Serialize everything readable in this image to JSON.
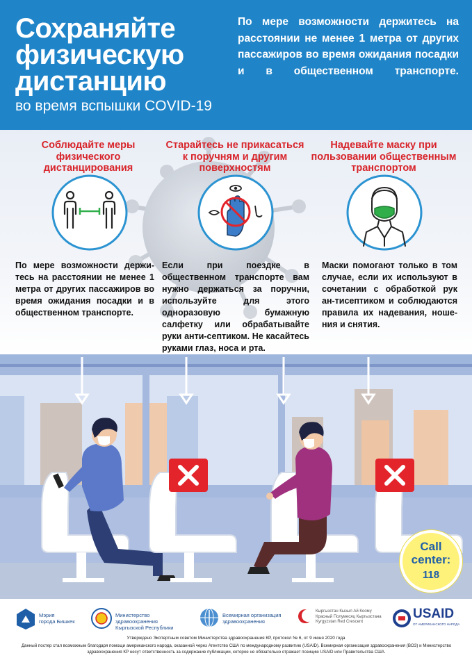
{
  "header": {
    "title_lines": [
      "Сохраняйте",
      "физическую",
      "дистанцию"
    ],
    "subtitle": "во время вспышки COVID-19",
    "intro": "По мере возможности держитесь на расстоянии не менее 1 метра от других пассажиров во время ожидания посадки и в общественном транспорте."
  },
  "columns": [
    {
      "title": "Соблюдайте меры физического дистанцирования",
      "icon": "distancing-people-icon",
      "text": "По мере возможности держи-тесь на расстоянии не менее 1 метра от других пассажиров во время ожидания посадки и в общественном транспорте."
    },
    {
      "title": "Старайтесь не прикасаться к поручням и другим поверхностям",
      "icon": "no-touch-face-icon",
      "text": "Если при поездке в общественном транспорте вам нужно держаться за поручни, используйте для этого одноразовую бумажную салфетку или обрабатывайте руки анти-септиком. Не касайтесь руками глаз, носа и рта."
    },
    {
      "title": "Надевайте маску при пользовании общественным транспортом",
      "icon": "face-mask-icon",
      "text": "Маски помогают только в том случае, если их используют в сочетании с обработкой рук ан-тисептиком и соблюдаются правила их надевания, ноше-ния и снятия."
    }
  ],
  "call_center": {
    "line1": "Call",
    "line2": "center:",
    "number": "118"
  },
  "footer": {
    "logos": [
      {
        "icon": "bishkek-city-hall-logo",
        "text": "Мэрия\nгорода Бишкек"
      },
      {
        "icon": "kyrgyz-health-ministry-logo",
        "text": "Министерство здравоохранения\nКыргызской Республики"
      },
      {
        "icon": "who-logo",
        "text": "Всемирная организация\nздравоохранения"
      },
      {
        "icon": "red-crescent-logo",
        "text": "Кыргызстан Кызыл Ай Коому\nКрасный Полумесяц Кыргызстана\nKyrgyzstan Red Crescent"
      },
      {
        "icon": "usaid-logo",
        "text": "USAID",
        "subtext": "ОТ АМЕРИКАНСКОГО НАРОДА"
      }
    ],
    "approved": "Утверждено Экспертным советом Министерства здравоохранения КР, протокол № 6, от 9 июня 2020 года",
    "disclaimer": "Данный постер стал возможным благодаря помощи американского народа, оказанной через Агентство США по международному развитию (USAID). Всемирная организация здравоохранения (ВОЗ) и Министерство здравоохранения КР несут ответственность за содержание публикации, которое не обязательно отражает позицию USAID или Правительства США."
  },
  "colors": {
    "header_blue": "#1f84c8",
    "title_red": "#d8242a",
    "seat_mark_red": "#e3242b",
    "call_yellow": "#fff27a"
  }
}
